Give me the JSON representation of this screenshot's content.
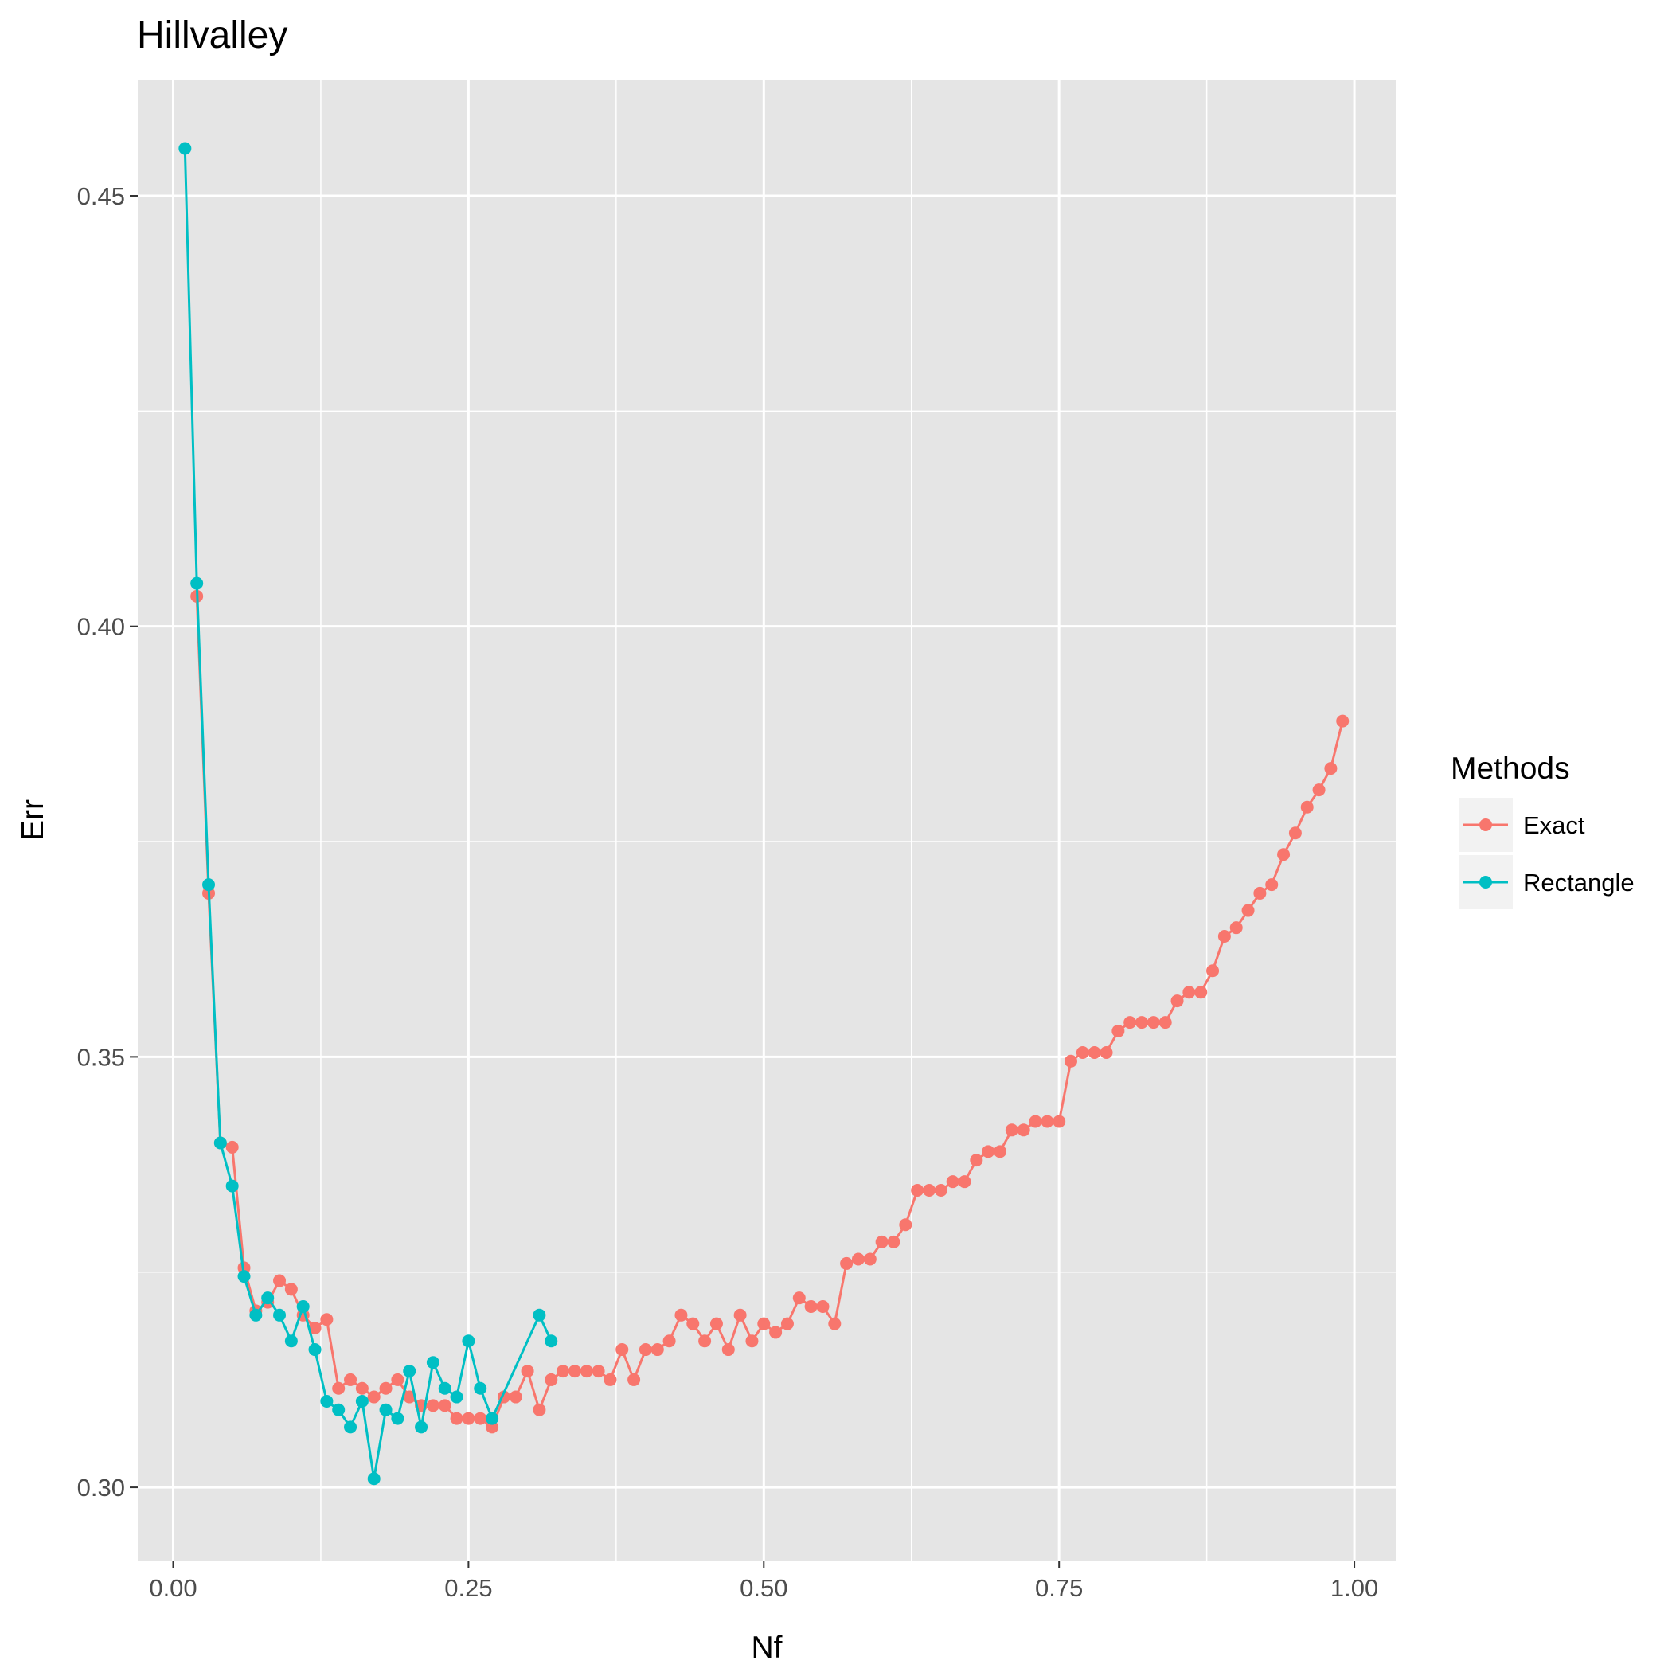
{
  "chart_data": {
    "type": "line",
    "title": "Hillvalley",
    "xlabel": "Nf",
    "ylabel": "Err",
    "xlim": [
      -0.03,
      1.035
    ],
    "ylim": [
      0.2915,
      0.4635
    ],
    "x_ticks": [
      0.0,
      0.25,
      0.5,
      0.75,
      1.0
    ],
    "x_tick_labels": [
      "0.00",
      "0.25",
      "0.50",
      "0.75",
      "1.00"
    ],
    "y_ticks": [
      0.3,
      0.35,
      0.4,
      0.45
    ],
    "y_tick_labels": [
      "0.30",
      "0.35",
      "0.40",
      "0.45"
    ],
    "grid": true,
    "legend": {
      "title": "Methods",
      "position": "right"
    },
    "colors": {
      "panel": "#e5e5e5",
      "grid": "#ffffff"
    },
    "series": [
      {
        "name": "Exact",
        "color": "#f8766d",
        "x": [
          0.02,
          0.03,
          0.04,
          0.05,
          0.06,
          0.07,
          0.08,
          0.09,
          0.1,
          0.11,
          0.12,
          0.13,
          0.14,
          0.15,
          0.16,
          0.17,
          0.18,
          0.19,
          0.2,
          0.21,
          0.22,
          0.23,
          0.24,
          0.25,
          0.26,
          0.27,
          0.28,
          0.29,
          0.3,
          0.31,
          0.32,
          0.33,
          0.34,
          0.35,
          0.36,
          0.37,
          0.38,
          0.39,
          0.4,
          0.41,
          0.42,
          0.43,
          0.44,
          0.45,
          0.46,
          0.47,
          0.48,
          0.49,
          0.5,
          0.51,
          0.52,
          0.53,
          0.54,
          0.55,
          0.56,
          0.57,
          0.58,
          0.59,
          0.6,
          0.61,
          0.62,
          0.63,
          0.64,
          0.65,
          0.66,
          0.67,
          0.68,
          0.69,
          0.7,
          0.71,
          0.72,
          0.73,
          0.74,
          0.75,
          0.76,
          0.77,
          0.78,
          0.79,
          0.8,
          0.81,
          0.82,
          0.83,
          0.84,
          0.85,
          0.86,
          0.87,
          0.88,
          0.89,
          0.9,
          0.91,
          0.92,
          0.93,
          0.94,
          0.95,
          0.96,
          0.97,
          0.98,
          0.99
        ],
        "y": [
          0.4035,
          0.369,
          0.34,
          0.3395,
          0.3255,
          0.3205,
          0.3215,
          0.324,
          0.323,
          0.32,
          0.3185,
          0.3195,
          0.3115,
          0.3125,
          0.3115,
          0.3105,
          0.3115,
          0.3125,
          0.3105,
          0.3095,
          0.3095,
          0.3095,
          0.308,
          0.308,
          0.308,
          0.307,
          0.3105,
          0.3105,
          0.3135,
          0.309,
          0.3125,
          0.3135,
          0.3135,
          0.3135,
          0.3135,
          0.3125,
          0.316,
          0.3125,
          0.316,
          0.316,
          0.317,
          0.32,
          0.319,
          0.317,
          0.319,
          0.316,
          0.32,
          0.317,
          0.319,
          0.318,
          0.319,
          0.322,
          0.321,
          0.321,
          0.319,
          0.326,
          0.3265,
          0.3265,
          0.3285,
          0.3285,
          0.3305,
          0.3345,
          0.3345,
          0.3345,
          0.3355,
          0.3355,
          0.338,
          0.339,
          0.339,
          0.3415,
          0.3415,
          0.3425,
          0.3425,
          0.3425,
          0.3495,
          0.3505,
          0.3505,
          0.3505,
          0.353,
          0.354,
          0.354,
          0.354,
          0.354,
          0.3565,
          0.3575,
          0.3575,
          0.36,
          0.364,
          0.365,
          0.367,
          0.369,
          0.37,
          0.3735,
          0.376,
          0.379,
          0.381,
          0.3835,
          0.389
        ]
      },
      {
        "name": "Rectangle",
        "color": "#00bfc4",
        "x": [
          0.01,
          0.02,
          0.03,
          0.04,
          0.05,
          0.06,
          0.07,
          0.08,
          0.09,
          0.1,
          0.11,
          0.12,
          0.13,
          0.14,
          0.15,
          0.16,
          0.17,
          0.18,
          0.19,
          0.2,
          0.21,
          0.22,
          0.23,
          0.24,
          0.25,
          0.26,
          0.27,
          0.31,
          0.32
        ],
        "y": [
          0.4555,
          0.405,
          0.37,
          0.34,
          0.335,
          0.3245,
          0.32,
          0.322,
          0.32,
          0.317,
          0.321,
          0.316,
          0.31,
          0.309,
          0.307,
          0.31,
          0.301,
          0.309,
          0.308,
          0.3135,
          0.307,
          0.3145,
          0.3115,
          0.3105,
          0.317,
          0.3115,
          0.308,
          0.32,
          0.317
        ]
      }
    ]
  }
}
